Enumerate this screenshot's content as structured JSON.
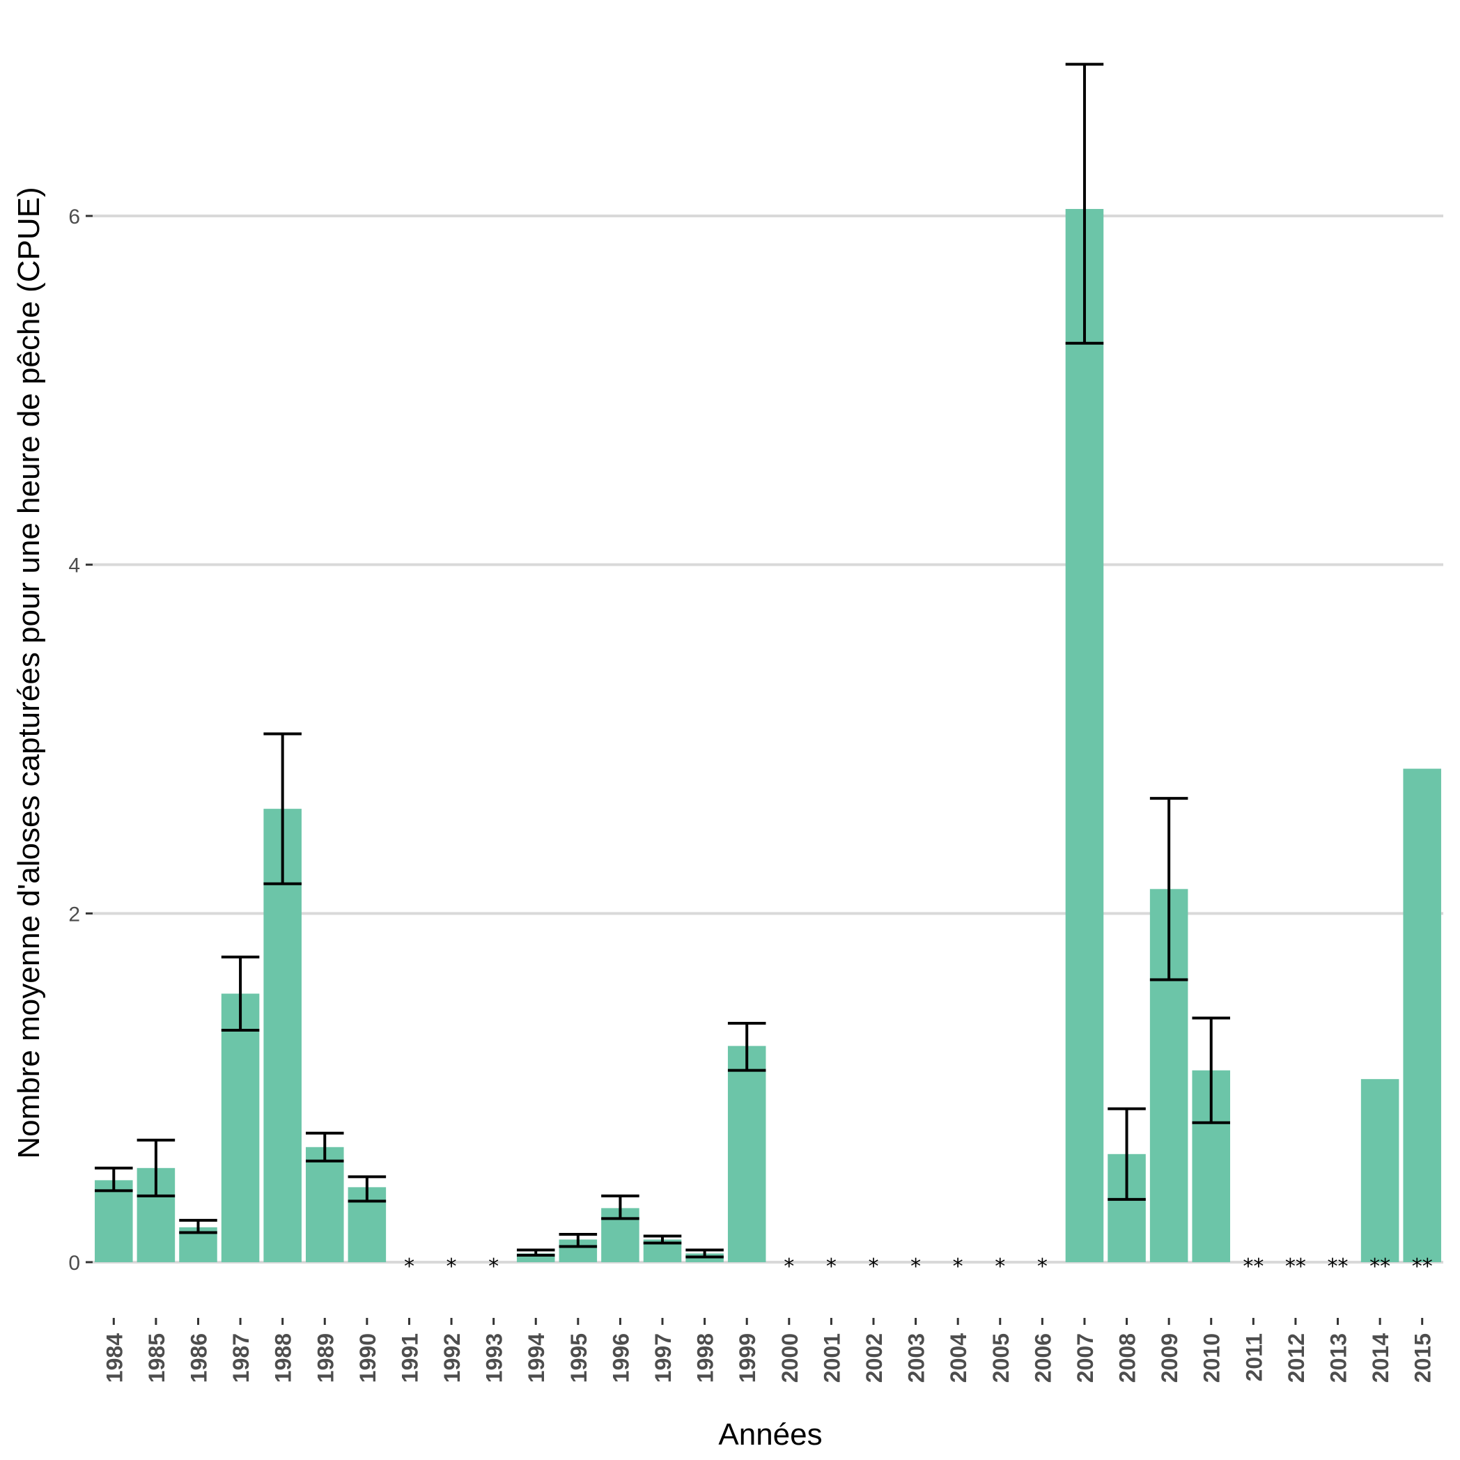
{
  "chart_data": {
    "type": "bar",
    "xlabel": "Années",
    "ylabel": "Nombre moyenne d'aloses capturées pour une heure de pêche (CPUE)",
    "ylim": [
      0,
      6.8
    ],
    "yticks": [
      "0",
      "2",
      "4",
      "6"
    ],
    "grid": "horizontal",
    "bar_color": "#6cc5a8",
    "grid_color": "#d9d9d9",
    "errorbar_color": "#000000",
    "categories": [
      "1984",
      "1985",
      "1986",
      "1987",
      "1988",
      "1989",
      "1990",
      "1991",
      "1992",
      "1993",
      "1994",
      "1995",
      "1996",
      "1997",
      "1998",
      "1999",
      "2000",
      "2001",
      "2002",
      "2003",
      "2004",
      "2005",
      "2006",
      "2007",
      "2008",
      "2009",
      "2010",
      "2011",
      "2012",
      "2013",
      "2014",
      "2015"
    ],
    "values": [
      0.47,
      0.54,
      0.2,
      1.54,
      2.6,
      0.66,
      0.43,
      0,
      0,
      0,
      0.05,
      0.13,
      0.31,
      0.13,
      0.05,
      1.24,
      0,
      0,
      0,
      0,
      0,
      0,
      0,
      6.04,
      0.62,
      2.14,
      1.1,
      0,
      0,
      0,
      1.05,
      2.83
    ],
    "error_low": [
      0.41,
      0.38,
      0.17,
      1.33,
      2.17,
      0.58,
      0.35,
      null,
      null,
      null,
      0.04,
      0.09,
      0.25,
      0.11,
      0.03,
      1.1,
      null,
      null,
      null,
      null,
      null,
      null,
      null,
      5.27,
      0.36,
      1.62,
      0.8,
      null,
      null,
      null,
      null,
      null
    ],
    "error_high": [
      0.54,
      0.7,
      0.24,
      1.75,
      3.03,
      0.74,
      0.49,
      null,
      null,
      null,
      0.07,
      0.16,
      0.38,
      0.15,
      0.07,
      1.37,
      null,
      null,
      null,
      null,
      null,
      null,
      null,
      6.87,
      0.88,
      2.66,
      1.4,
      null,
      null,
      null,
      null,
      null
    ],
    "annotations": [
      "",
      "",
      "",
      "",
      "",
      "",
      "",
      "*",
      "*",
      "*",
      "",
      "",
      "",
      "",
      "",
      "",
      "*",
      "*",
      "*",
      "*",
      "*",
      "*",
      "*",
      "",
      "",
      "",
      "",
      "**",
      "**",
      "**",
      "**",
      "**"
    ]
  }
}
